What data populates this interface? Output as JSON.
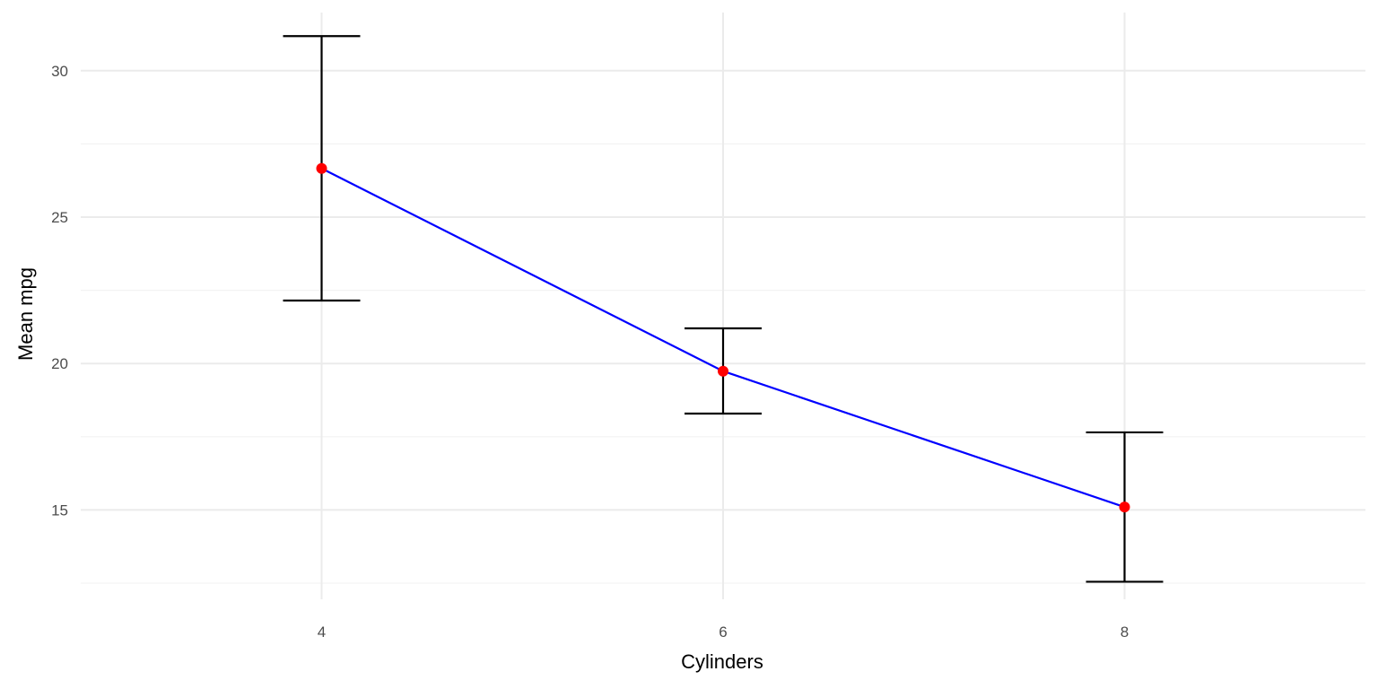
{
  "chart_data": {
    "type": "line",
    "title": "",
    "xlabel": "Cylinders",
    "ylabel": "Mean mpg",
    "x": [
      4,
      6,
      8
    ],
    "y": [
      26.66,
      19.74,
      15.1
    ],
    "error_low": [
      22.15,
      18.29,
      12.55
    ],
    "error_high": [
      31.18,
      21.2,
      17.65
    ],
    "x_ticks": [
      4,
      6,
      8
    ],
    "y_ticks": [
      15,
      20,
      25,
      30
    ],
    "xlim": [
      2.8,
      9.2
    ],
    "ylim": [
      11.95,
      31.8
    ],
    "grid": true,
    "legend": "none",
    "colors": {
      "line": "#0000ff",
      "point": "#ff0000",
      "errorbar": "#000000",
      "grid_major": "#ebebeb",
      "grid_minor": "#f3f3f3"
    }
  }
}
